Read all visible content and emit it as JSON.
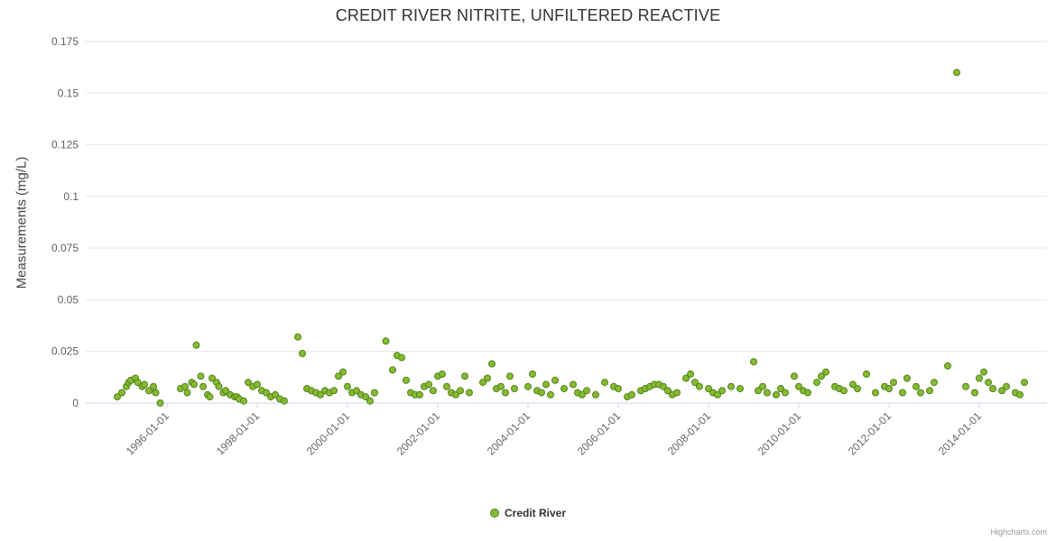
{
  "chart": {
    "credits": "Highcharts.com"
  },
  "chart_data": {
    "type": "scatter",
    "title": "CREDIT RIVER NITRITE, UNFILTERED REACTIVE",
    "xlabel": "",
    "ylabel": "Measurements (mg/L)",
    "xlim": [
      1994.2,
      2015.5
    ],
    "ylim": [
      0,
      0.175
    ],
    "grid": true,
    "legend_position": "bottom",
    "x_ticks": [
      {
        "value": 1996,
        "label": "1996-01-01"
      },
      {
        "value": 1998,
        "label": "1998-01-01"
      },
      {
        "value": 2000,
        "label": "2000-01-01"
      },
      {
        "value": 2002,
        "label": "2002-01-01"
      },
      {
        "value": 2004,
        "label": "2004-01-01"
      },
      {
        "value": 2006,
        "label": "2006-01-01"
      },
      {
        "value": 2008,
        "label": "2008-01-01"
      },
      {
        "value": 2010,
        "label": "2010-01-01"
      },
      {
        "value": 2012,
        "label": "2012-01-01"
      },
      {
        "value": 2014,
        "label": "2014-01-01"
      }
    ],
    "y_ticks": [
      {
        "value": 0,
        "label": "0"
      },
      {
        "value": 0.025,
        "label": "0.025"
      },
      {
        "value": 0.05,
        "label": "0.05"
      },
      {
        "value": 0.075,
        "label": "0.075"
      },
      {
        "value": 0.1,
        "label": "0.1"
      },
      {
        "value": 0.125,
        "label": "0.125"
      },
      {
        "value": 0.15,
        "label": "0.15"
      },
      {
        "value": 0.175,
        "label": "0.175"
      }
    ],
    "series": [
      {
        "name": "Credit River",
        "color": "#85bb30",
        "border_color": "#55801c",
        "points": [
          [
            1994.9,
            0.003
          ],
          [
            1995.0,
            0.005
          ],
          [
            1995.1,
            0.008
          ],
          [
            1995.15,
            0.01
          ],
          [
            1995.2,
            0.011
          ],
          [
            1995.3,
            0.012
          ],
          [
            1995.35,
            0.01
          ],
          [
            1995.45,
            0.008
          ],
          [
            1995.5,
            0.009
          ],
          [
            1995.6,
            0.006
          ],
          [
            1995.7,
            0.008
          ],
          [
            1995.75,
            0.005
          ],
          [
            1995.85,
            0.0
          ],
          [
            1996.3,
            0.007
          ],
          [
            1996.4,
            0.008
          ],
          [
            1996.45,
            0.005
          ],
          [
            1996.55,
            0.01
          ],
          [
            1996.6,
            0.009
          ],
          [
            1996.65,
            0.028
          ],
          [
            1996.75,
            0.013
          ],
          [
            1996.8,
            0.008
          ],
          [
            1996.9,
            0.004
          ],
          [
            1996.95,
            0.003
          ],
          [
            1997.0,
            0.012
          ],
          [
            1997.1,
            0.01
          ],
          [
            1997.15,
            0.008
          ],
          [
            1997.25,
            0.005
          ],
          [
            1997.3,
            0.006
          ],
          [
            1997.4,
            0.004
          ],
          [
            1997.5,
            0.003
          ],
          [
            1997.55,
            0.003
          ],
          [
            1997.6,
            0.002
          ],
          [
            1997.7,
            0.001
          ],
          [
            1997.8,
            0.01
          ],
          [
            1997.9,
            0.008
          ],
          [
            1998.0,
            0.009
          ],
          [
            1998.1,
            0.006
          ],
          [
            1998.2,
            0.005
          ],
          [
            1998.3,
            0.003
          ],
          [
            1998.4,
            0.004
          ],
          [
            1998.5,
            0.002
          ],
          [
            1998.6,
            0.001
          ],
          [
            1998.9,
            0.032
          ],
          [
            1999.0,
            0.024
          ],
          [
            1999.1,
            0.007
          ],
          [
            1999.2,
            0.006
          ],
          [
            1999.3,
            0.005
          ],
          [
            1999.4,
            0.004
          ],
          [
            1999.5,
            0.006
          ],
          [
            1999.6,
            0.005
          ],
          [
            1999.7,
            0.006
          ],
          [
            1999.8,
            0.013
          ],
          [
            1999.9,
            0.015
          ],
          [
            2000.0,
            0.008
          ],
          [
            2000.1,
            0.005
          ],
          [
            2000.2,
            0.006
          ],
          [
            2000.3,
            0.004
          ],
          [
            2000.4,
            0.003
          ],
          [
            2000.5,
            0.001
          ],
          [
            2000.6,
            0.005
          ],
          [
            2000.85,
            0.03
          ],
          [
            2001.0,
            0.016
          ],
          [
            2001.1,
            0.023
          ],
          [
            2001.2,
            0.022
          ],
          [
            2001.3,
            0.011
          ],
          [
            2001.4,
            0.005
          ],
          [
            2001.5,
            0.004
          ],
          [
            2001.6,
            0.004
          ],
          [
            2001.7,
            0.008
          ],
          [
            2001.8,
            0.009
          ],
          [
            2001.9,
            0.006
          ],
          [
            2002.0,
            0.013
          ],
          [
            2002.1,
            0.014
          ],
          [
            2002.2,
            0.008
          ],
          [
            2002.3,
            0.005
          ],
          [
            2002.4,
            0.004
          ],
          [
            2002.5,
            0.006
          ],
          [
            2002.6,
            0.013
          ],
          [
            2002.7,
            0.005
          ],
          [
            2003.0,
            0.01
          ],
          [
            2003.1,
            0.012
          ],
          [
            2003.2,
            0.019
          ],
          [
            2003.3,
            0.007
          ],
          [
            2003.4,
            0.008
          ],
          [
            2003.5,
            0.005
          ],
          [
            2003.6,
            0.013
          ],
          [
            2003.7,
            0.007
          ],
          [
            2004.0,
            0.008
          ],
          [
            2004.1,
            0.014
          ],
          [
            2004.2,
            0.006
          ],
          [
            2004.3,
            0.005
          ],
          [
            2004.4,
            0.009
          ],
          [
            2004.5,
            0.004
          ],
          [
            2004.6,
            0.011
          ],
          [
            2004.8,
            0.007
          ],
          [
            2005.0,
            0.009
          ],
          [
            2005.1,
            0.005
          ],
          [
            2005.2,
            0.004
          ],
          [
            2005.3,
            0.006
          ],
          [
            2005.5,
            0.004
          ],
          [
            2005.7,
            0.01
          ],
          [
            2005.9,
            0.008
          ],
          [
            2006.0,
            0.007
          ],
          [
            2006.2,
            0.003
          ],
          [
            2006.3,
            0.004
          ],
          [
            2006.5,
            0.006
          ],
          [
            2006.6,
            0.007
          ],
          [
            2006.7,
            0.008
          ],
          [
            2006.8,
            0.009
          ],
          [
            2006.9,
            0.009
          ],
          [
            2007.0,
            0.008
          ],
          [
            2007.1,
            0.006
          ],
          [
            2007.2,
            0.004
          ],
          [
            2007.3,
            0.005
          ],
          [
            2007.5,
            0.012
          ],
          [
            2007.6,
            0.014
          ],
          [
            2007.7,
            0.01
          ],
          [
            2007.8,
            0.008
          ],
          [
            2008.0,
            0.007
          ],
          [
            2008.1,
            0.005
          ],
          [
            2008.2,
            0.004
          ],
          [
            2008.3,
            0.006
          ],
          [
            2008.5,
            0.008
          ],
          [
            2008.7,
            0.007
          ],
          [
            2009.0,
            0.02
          ],
          [
            2009.1,
            0.006
          ],
          [
            2009.2,
            0.008
          ],
          [
            2009.3,
            0.005
          ],
          [
            2009.5,
            0.004
          ],
          [
            2009.6,
            0.007
          ],
          [
            2009.7,
            0.005
          ],
          [
            2009.9,
            0.013
          ],
          [
            2010.0,
            0.008
          ],
          [
            2010.1,
            0.006
          ],
          [
            2010.2,
            0.005
          ],
          [
            2010.4,
            0.01
          ],
          [
            2010.5,
            0.013
          ],
          [
            2010.6,
            0.015
          ],
          [
            2010.8,
            0.008
          ],
          [
            2010.9,
            0.007
          ],
          [
            2011.0,
            0.006
          ],
          [
            2011.2,
            0.009
          ],
          [
            2011.3,
            0.007
          ],
          [
            2011.5,
            0.014
          ],
          [
            2011.7,
            0.005
          ],
          [
            2011.9,
            0.008
          ],
          [
            2012.0,
            0.007
          ],
          [
            2012.1,
            0.01
          ],
          [
            2012.3,
            0.005
          ],
          [
            2012.4,
            0.012
          ],
          [
            2012.6,
            0.008
          ],
          [
            2012.7,
            0.005
          ],
          [
            2012.9,
            0.006
          ],
          [
            2013.0,
            0.01
          ],
          [
            2013.3,
            0.018
          ],
          [
            2013.5,
            0.16
          ],
          [
            2013.7,
            0.008
          ],
          [
            2013.9,
            0.005
          ],
          [
            2014.0,
            0.012
          ],
          [
            2014.1,
            0.015
          ],
          [
            2014.2,
            0.01
          ],
          [
            2014.3,
            0.007
          ],
          [
            2014.5,
            0.006
          ],
          [
            2014.6,
            0.008
          ],
          [
            2014.8,
            0.005
          ],
          [
            2014.9,
            0.004
          ],
          [
            2015.0,
            0.01
          ]
        ]
      }
    ]
  }
}
